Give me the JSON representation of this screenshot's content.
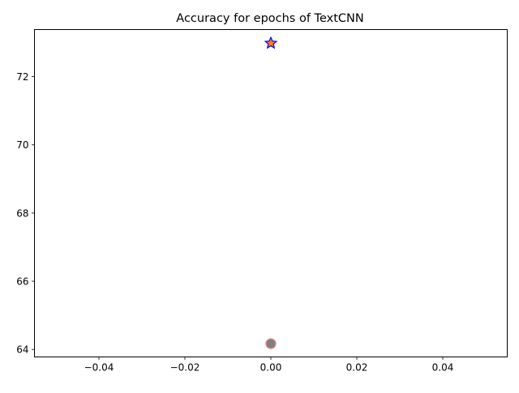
{
  "chart_data": {
    "type": "scatter",
    "title": "Accuracy for epochs of TextCNN",
    "xlabel": "",
    "ylabel": "",
    "xlim": [
      -0.055,
      0.055
    ],
    "ylim": [
      63.78,
      73.38
    ],
    "xticks": [
      -0.04,
      -0.02,
      0.0,
      0.02,
      0.04
    ],
    "xtick_labels": [
      "−0.04",
      "−0.02",
      "0.00",
      "0.02",
      "0.04"
    ],
    "yticks": [
      64,
      66,
      68,
      70,
      72
    ],
    "ytick_labels": [
      "64",
      "66",
      "68",
      "70",
      "72"
    ],
    "grid": false,
    "series": [
      {
        "marker": "star",
        "face_color": "#ff7f0e",
        "edge_color": "#0000ff",
        "points": [
          {
            "x": 0.0,
            "y": 72.98
          }
        ]
      },
      {
        "marker": "circle",
        "face_color": "#808080",
        "edge_color": "#f08080",
        "points": [
          {
            "x": 0.0,
            "y": 64.17
          }
        ]
      }
    ]
  }
}
